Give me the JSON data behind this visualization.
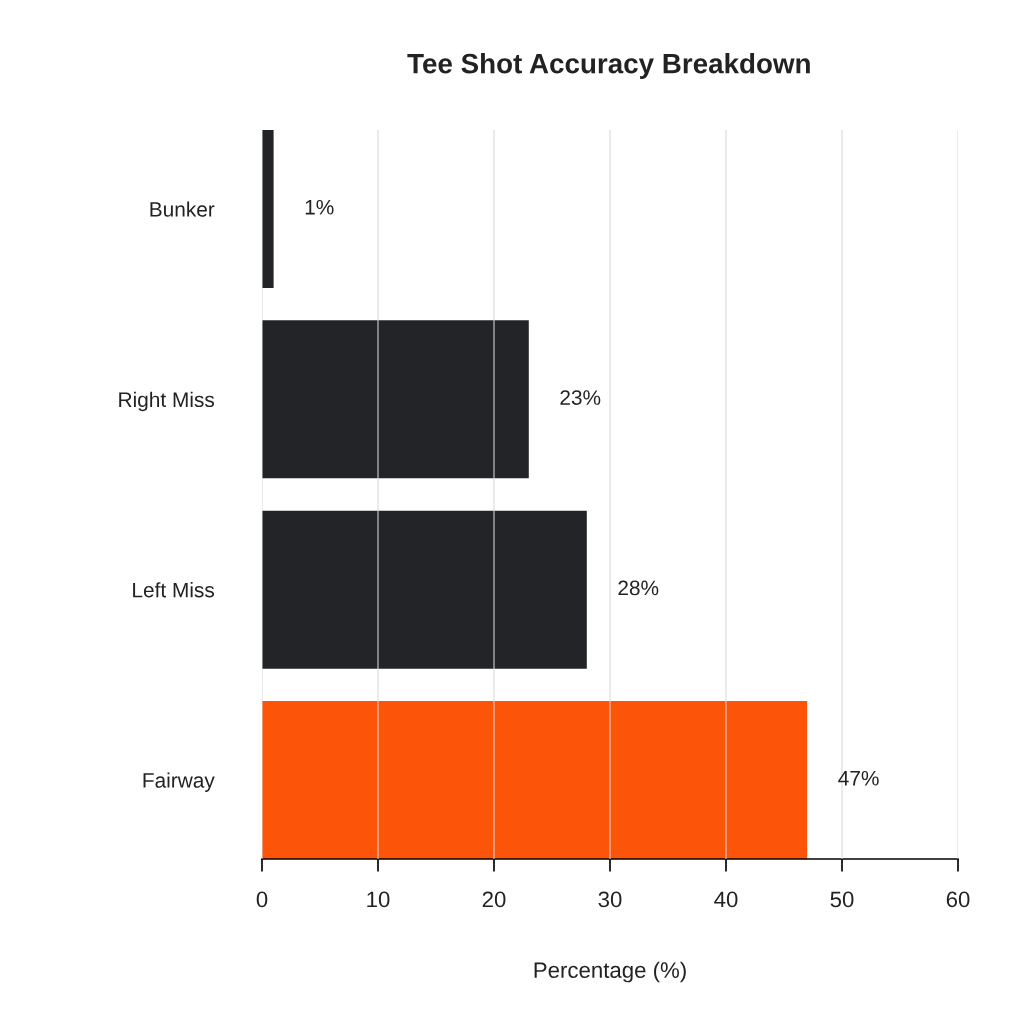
{
  "chart_data": {
    "type": "bar",
    "orientation": "horizontal",
    "title": "Tee Shot Accuracy Breakdown",
    "xlabel": "Percentage (%)",
    "categories": [
      "Bunker",
      "Right Miss",
      "Left Miss",
      "Fairway"
    ],
    "values": [
      1,
      23,
      28,
      47
    ],
    "colors": [
      "#232428",
      "#232428",
      "#232428",
      "#fc5409"
    ],
    "value_labels": [
      "1%",
      "23%",
      "28%",
      "47%"
    ],
    "xlim": [
      0,
      60
    ],
    "xticks": [
      0,
      10,
      20,
      30,
      40,
      50,
      60
    ],
    "grid": "x"
  }
}
